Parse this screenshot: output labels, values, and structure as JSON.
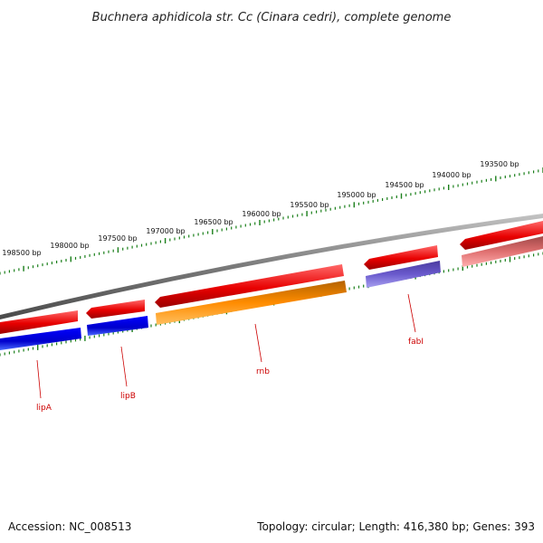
{
  "title": "Buchnera aphidicola str. Cc (Cinara cedri), complete genome",
  "footer": {
    "accession": "Accession: NC_008513",
    "summary": "Topology: circular; Length: 416,380 bp; Genes: 393"
  },
  "scale_labels": [
    "198500 bp",
    "198000 bp",
    "197500 bp",
    "197000 bp",
    "196500 bp",
    "196000 bp",
    "195500 bp",
    "195000 bp",
    "194500 bp",
    "194000 bp",
    "193500 bp"
  ],
  "gene_labels": [
    "lipA",
    "lipB",
    "rnb",
    "fabI"
  ],
  "colors": {
    "backbone": "#7a7a7a",
    "ticks": "#1a7f1a",
    "forward_feature": "#ee0000",
    "reverse_cds": "#0000dd",
    "rnb": "#ff8c00",
    "fabI": "#6a5acd",
    "pseudo": "#e07070",
    "label": "#cc0000"
  }
}
